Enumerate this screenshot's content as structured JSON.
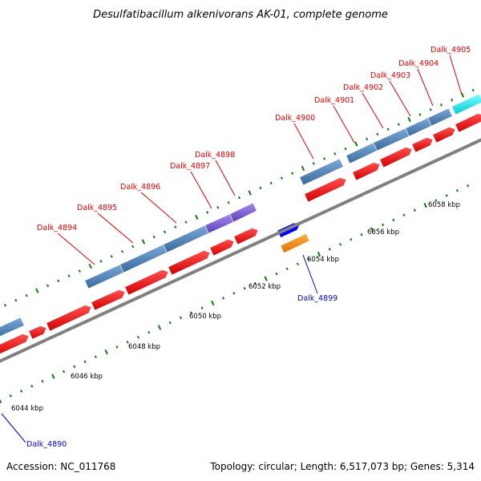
{
  "title": "Desulfatibacillum alkenivorans AK-01, complete genome",
  "footer": {
    "accession": "Accession: NC_011768",
    "summary": "Topology: circular; Length: 6,517,073 bp; Genes: 5,314"
  },
  "colors": {
    "backbone": "#808080",
    "tick": "#0a7d0a",
    "cds_red": "#ff0000",
    "gene_blue": "#4a7fb5",
    "gene_purple": "#7a5cd0",
    "gene_cyan": "#00e8f0",
    "gene_darkblue": "#0000ff",
    "gene_orange": "#ff8c00",
    "label_red": "#e00000",
    "label_blue": "#0000c8"
  },
  "scale_labels": [
    "6044 kbp",
    "6046 kbp",
    "6048 kbp",
    "6050 kbp",
    "6052 kbp",
    "6054 kbp",
    "6056 kbp",
    "6058 kbp"
  ],
  "gene_labels_top": [
    "Dalk_4894",
    "Dalk_4895",
    "Dalk_4896",
    "Dalk_4897",
    "Dalk_4898",
    "Dalk_4900",
    "Dalk_4901",
    "Dalk_4902",
    "Dalk_4903",
    "Dalk_4904",
    "Dalk_4905"
  ],
  "gene_labels_bottom": [
    "Dalk_4899",
    "Dalk_4890"
  ]
}
